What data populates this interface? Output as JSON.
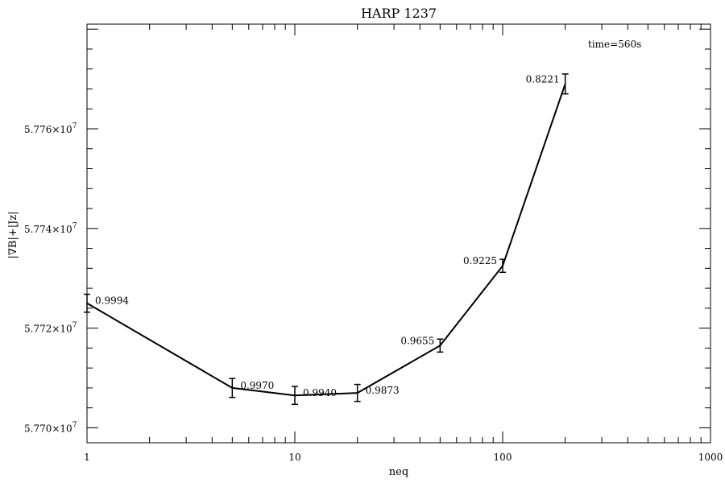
{
  "chart_data": {
    "type": "line",
    "title": "HARP 1237",
    "xlabel": "neq",
    "ylabel": "|∇B|+|Jz|",
    "annotation": "time=560s",
    "xscale": "log",
    "xlim": [
      1,
      1000
    ],
    "ylim": [
      57697000,
      57781000
    ],
    "x_ticks": [
      {
        "value": 1,
        "label": "1"
      },
      {
        "value": 10,
        "label": "10"
      },
      {
        "value": 100,
        "label": "100"
      },
      {
        "value": 1000,
        "label": "1000"
      }
    ],
    "y_ticks": [
      {
        "value": 57700000,
        "mantissa": "5.770",
        "exp": "7"
      },
      {
        "value": 57720000,
        "mantissa": "5.772",
        "exp": "7"
      },
      {
        "value": 57740000,
        "mantissa": "5.774",
        "exp": "7"
      },
      {
        "value": 57760000,
        "mantissa": "5.776",
        "exp": "7"
      }
    ],
    "series": [
      {
        "points": [
          {
            "x": 1,
            "y": 57725000,
            "err": 1800,
            "label": "0.9994"
          },
          {
            "x": 5,
            "y": 57708000,
            "err": 1900,
            "label": "0.9970"
          },
          {
            "x": 10,
            "y": 57706500,
            "err": 1800,
            "label": "0.9940"
          },
          {
            "x": 20,
            "y": 57707000,
            "err": 1700,
            "label": "0.9873"
          },
          {
            "x": 50,
            "y": 57716500,
            "err": 1300,
            "label": "0.9655"
          },
          {
            "x": 100,
            "y": 57732500,
            "err": 1300,
            "label": "0.9225"
          },
          {
            "x": 200,
            "y": 57769000,
            "err": 2000,
            "label": "0.8221"
          }
        ]
      }
    ],
    "grid": false,
    "legend": "none"
  }
}
